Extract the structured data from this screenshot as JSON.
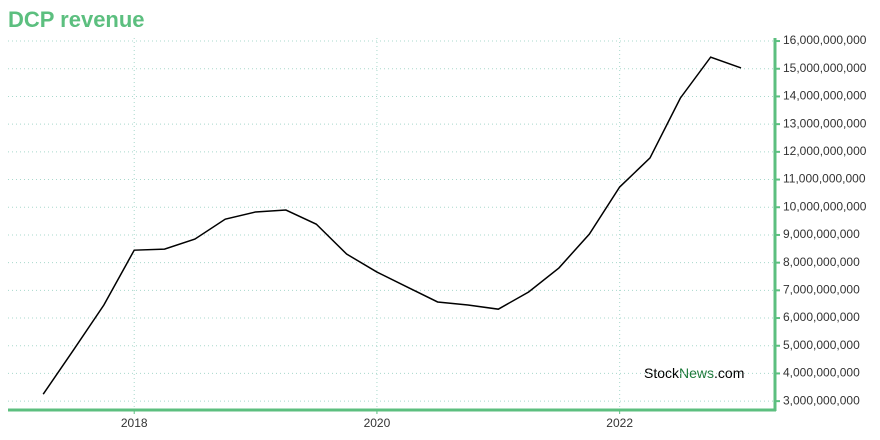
{
  "chart_data": {
    "type": "line",
    "title": "DCP revenue",
    "x": [
      2017.25,
      2017.5,
      2017.75,
      2018.0,
      2018.25,
      2018.5,
      2018.75,
      2019.0,
      2019.25,
      2019.5,
      2019.75,
      2020.0,
      2020.25,
      2020.5,
      2020.75,
      2021.0,
      2021.25,
      2021.5,
      2021.75,
      2022.0,
      2022.25,
      2022.5,
      2022.75,
      2023.0
    ],
    "series": [
      {
        "color": "#000000",
        "values": [
          3250000000,
          4850000000,
          6470000000,
          8450000000,
          8490000000,
          8850000000,
          9570000000,
          9830000000,
          9900000000,
          9390000000,
          8310000000,
          7660000000,
          7120000000,
          6580000000,
          6470000000,
          6320000000,
          6940000000,
          7810000000,
          9030000000,
          10730000000,
          11780000000,
          13940000000,
          15420000000,
          15030000000
        ]
      }
    ],
    "xlim": [
      2016.96,
      2023.28
    ],
    "xticks": [
      2018,
      2020,
      2022
    ],
    "ylim": [
      2680000000,
      16110000000
    ],
    "yticks": [
      {
        "value": 3000000000,
        "label": "3,000,000,000"
      },
      {
        "value": 4000000000,
        "label": "4,000,000,000"
      },
      {
        "value": 5000000000,
        "label": "5,000,000,000"
      },
      {
        "value": 6000000000,
        "label": "6,000,000,000"
      },
      {
        "value": 7000000000,
        "label": "7,000,000,000"
      },
      {
        "value": 8000000000,
        "label": "8,000,000,000"
      },
      {
        "value": 9000000000,
        "label": "9,000,000,000"
      },
      {
        "value": 10000000000,
        "label": "10,000,000,000"
      },
      {
        "value": 11000000000,
        "label": "11,000,000,000"
      },
      {
        "value": 12000000000,
        "label": "12,000,000,000"
      },
      {
        "value": 13000000000,
        "label": "13,000,000,000"
      },
      {
        "value": 14000000000,
        "label": "14,000,000,000"
      },
      {
        "value": 15000000000,
        "label": "15,000,000,000"
      },
      {
        "value": 16000000000,
        "label": "16,000,000,000"
      }
    ],
    "grid": true,
    "axis_color": "#5cbf7f",
    "watermark": [
      "Stock",
      "News",
      ".com"
    ]
  }
}
